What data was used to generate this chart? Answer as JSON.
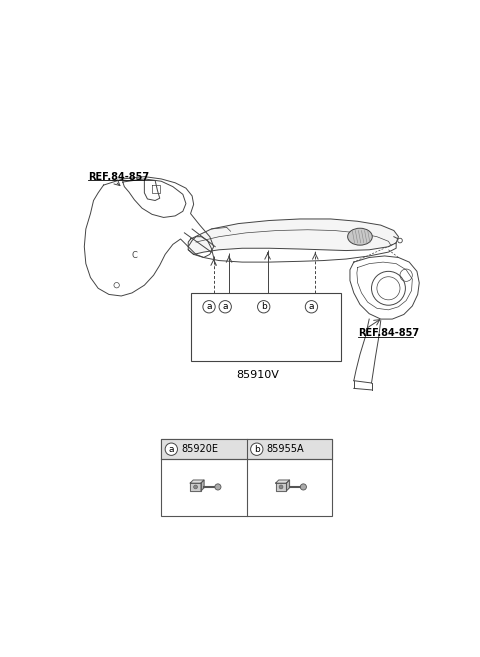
{
  "bg_color": "#ffffff",
  "line_color": "#444444",
  "label_color": "#000000",
  "fig_width": 4.8,
  "fig_height": 6.57,
  "dpi": 100,
  "part_85910V": "85910V",
  "part_85920E": "85920E",
  "part_85955A": "85955A",
  "ref_84857": "REF.84-857",
  "circle_a": "a",
  "circle_b": "b",
  "ref_color": "#000000",
  "ref_underline": true
}
